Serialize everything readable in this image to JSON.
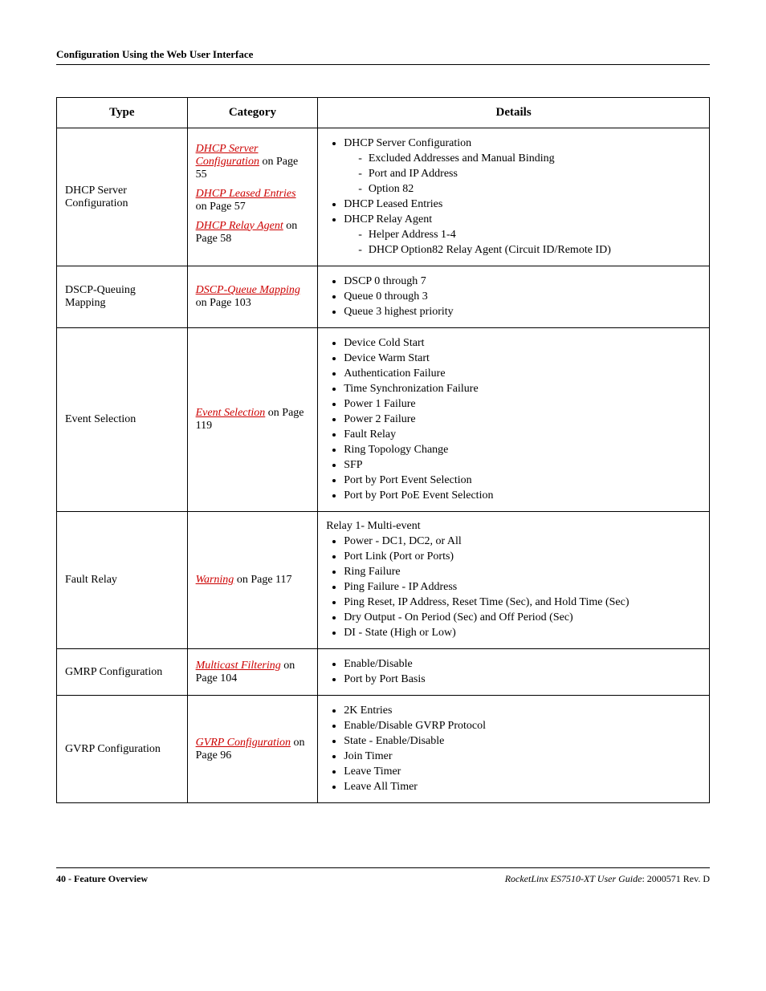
{
  "header": {
    "title": "Configuration Using the Web User Interface"
  },
  "table": {
    "headers": {
      "type": "Type",
      "category": "Category",
      "details": "Details"
    },
    "rows": {
      "dhcp": {
        "type": "DHCP Server Configuration",
        "cat1_link": "DHCP Server Configuration",
        "cat1_tail": " on Page 55",
        "cat2_link": "DHCP Leased Entries",
        "cat2_tail": " on Page 57",
        "cat3_link": "DHCP Relay Agent",
        "cat3_tail": " on Page 58",
        "d1": "DHCP Server Configuration",
        "d1a": "Excluded Addresses and Manual Binding",
        "d1b": "Port and IP Address",
        "d1c": "Option 82",
        "d2": "DHCP Leased Entries",
        "d3": "DHCP Relay Agent",
        "d3a": "Helper Address 1-4",
        "d3b": "DHCP Option82 Relay Agent (Circuit ID/Remote ID)"
      },
      "dscp": {
        "type": "DSCP-Queuing Mapping",
        "cat_link": "DSCP-Queue Mapping",
        "cat_tail": " on Page 103",
        "d1": "DSCP 0 through 7",
        "d2": "Queue 0 through 3",
        "d3": "Queue 3 highest priority"
      },
      "event": {
        "type": "Event Selection",
        "cat_link": "Event Selection",
        "cat_tail": " on Page 119",
        "d1": "Device Cold Start",
        "d2": "Device Warm Start",
        "d3": "Authentication Failure",
        "d4": "Time Synchronization Failure",
        "d5": "Power 1 Failure",
        "d6": "Power 2 Failure",
        "d7": "Fault Relay",
        "d8": "Ring Topology Change",
        "d9": "SFP",
        "d10": "Port by Port Event Selection",
        "d11": "Port by Port PoE Event Selection"
      },
      "fault": {
        "type": "Fault Relay",
        "cat_link": "Warning",
        "cat_tail": " on Page 117",
        "intro": "Relay 1- Multi-event",
        "d1": "Power - DC1, DC2, or All",
        "d2": "Port Link (Port or Ports)",
        "d3": "Ring Failure",
        "d4": "Ping Failure - IP Address",
        "d5": "Ping Reset, IP Address, Reset Time (Sec), and Hold Time (Sec)",
        "d6": "Dry Output - On Period (Sec) and Off Period (Sec)",
        "d7": "DI - State (High or Low)"
      },
      "gmrp": {
        "type": "GMRP Configuration",
        "cat_link": "Multicast Filtering",
        "cat_tail": " on Page 104",
        "d1": "Enable/Disable",
        "d2": "Port by Port Basis"
      },
      "gvrp": {
        "type": "GVRP Configuration",
        "cat_link": "GVRP Configuration",
        "cat_tail": " on Page 96",
        "d1": "2K Entries",
        "d2": "Enable/Disable GVRP Protocol",
        "d3": "State - Enable/Disable",
        "d4": "Join Timer",
        "d5": "Leave Timer",
        "d6": "Leave All Timer"
      }
    }
  },
  "footer": {
    "left": "40 - Feature Overview",
    "right_italic": "RocketLinx ES7510-XT  User Guide",
    "right_tail": ": 2000571 Rev. D"
  }
}
